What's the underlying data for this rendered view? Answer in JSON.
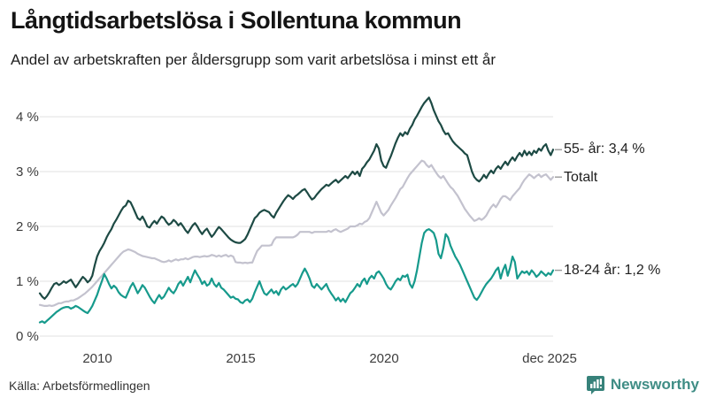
{
  "header": {
    "title": "Långtidsarbetslösa i Sollentuna kommun",
    "subtitle": "Andel av arbetskraften per åldersgrupp som varit arbetslösa i minst ett år"
  },
  "footer": {
    "source": "Källa: Arbetsförmedlingen",
    "brand": "Newsworthy"
  },
  "colors": {
    "series_55": "#1d4a44",
    "series_total": "#c3c2ce",
    "series_youth": "#169a8c",
    "grid": "#e0e0e0",
    "brand_teal": "#3f8d85",
    "connector": "#999999"
  },
  "chart_data": {
    "type": "line",
    "title": "Långtidsarbetslösa i Sollentuna kommun",
    "subtitle": "Andel av arbetskraften per åldersgrupp som varit arbetslösa i minst ett år",
    "unit": "% av arbetskraften",
    "frequency": "monthly",
    "x_start": "2008-01",
    "x_end": "2025-12",
    "ylim": [
      0,
      4.45
    ],
    "grid": true,
    "legend_position": "right of line ends",
    "yticks": [
      "0 %",
      "1 %",
      "2 %",
      "3 %",
      "4 %"
    ],
    "ytick_values": [
      0,
      1,
      2,
      3,
      4
    ],
    "xticks": [
      "2010",
      "2015",
      "2020",
      "dec 2025"
    ],
    "xtick_years": [
      2010,
      2015,
      2020,
      2025.917
    ],
    "series": [
      {
        "name": "55- år",
        "label": "55- år: 3,4 %",
        "end_value": "3,4 %",
        "color": "#1d4a44",
        "values": [
          0.78,
          0.72,
          0.68,
          0.73,
          0.8,
          0.88,
          0.95,
          0.97,
          0.93,
          0.96,
          1.0,
          0.97,
          1.0,
          1.03,
          0.96,
          0.89,
          0.95,
          1.02,
          1.08,
          1.04,
          0.98,
          1.02,
          1.1,
          1.29,
          1.45,
          1.55,
          1.62,
          1.7,
          1.8,
          1.88,
          1.95,
          2.05,
          2.12,
          2.2,
          2.28,
          2.35,
          2.38,
          2.47,
          2.44,
          2.35,
          2.25,
          2.15,
          2.12,
          2.18,
          2.1,
          2.0,
          1.98,
          2.05,
          2.1,
          2.05,
          2.12,
          2.18,
          2.15,
          2.08,
          2.03,
          2.06,
          2.12,
          2.08,
          2.02,
          2.06,
          2.0,
          1.93,
          1.88,
          1.95,
          2.02,
          2.06,
          2.0,
          1.92,
          1.86,
          1.92,
          1.96,
          1.88,
          1.81,
          1.86,
          1.93,
          1.99,
          1.95,
          1.9,
          1.85,
          1.8,
          1.76,
          1.73,
          1.71,
          1.7,
          1.7,
          1.73,
          1.77,
          1.85,
          1.95,
          2.05,
          2.15,
          2.19,
          2.25,
          2.28,
          2.3,
          2.28,
          2.26,
          2.2,
          2.16,
          2.25,
          2.32,
          2.39,
          2.46,
          2.52,
          2.57,
          2.54,
          2.5,
          2.55,
          2.58,
          2.62,
          2.66,
          2.68,
          2.62,
          2.55,
          2.49,
          2.52,
          2.58,
          2.63,
          2.68,
          2.72,
          2.76,
          2.74,
          2.78,
          2.82,
          2.85,
          2.8,
          2.84,
          2.88,
          2.92,
          2.88,
          2.94,
          3.0,
          2.95,
          3.0,
          2.92,
          3.05,
          3.1,
          3.17,
          3.22,
          3.3,
          3.38,
          3.5,
          3.42,
          3.2,
          3.1,
          3.07,
          3.18,
          3.28,
          3.4,
          3.52,
          3.62,
          3.7,
          3.65,
          3.72,
          3.68,
          3.78,
          3.85,
          3.95,
          4.02,
          4.1,
          4.18,
          4.25,
          4.3,
          4.35,
          4.25,
          4.12,
          4.02,
          3.92,
          3.85,
          3.75,
          3.68,
          3.7,
          3.62,
          3.55,
          3.5,
          3.46,
          3.42,
          3.38,
          3.33,
          3.3,
          3.15,
          3.0,
          2.9,
          2.85,
          2.82,
          2.87,
          2.94,
          2.88,
          2.96,
          3.02,
          2.97,
          3.05,
          3.1,
          3.05,
          3.12,
          3.18,
          3.12,
          3.2,
          3.26,
          3.2,
          3.28,
          3.34,
          3.28,
          3.38,
          3.3,
          3.36,
          3.3,
          3.38,
          3.34,
          3.42,
          3.38,
          3.46,
          3.5,
          3.38,
          3.3,
          3.4
        ]
      },
      {
        "name": "Totalt",
        "label": "Totalt",
        "end_value": "2,9 %",
        "color": "#c3c2ce",
        "values": [
          0.57,
          0.56,
          0.55,
          0.55,
          0.56,
          0.55,
          0.56,
          0.58,
          0.6,
          0.6,
          0.62,
          0.63,
          0.63,
          0.65,
          0.65,
          0.67,
          0.69,
          0.72,
          0.75,
          0.78,
          0.82,
          0.86,
          0.9,
          0.95,
          1.0,
          1.05,
          1.1,
          1.15,
          1.2,
          1.25,
          1.3,
          1.35,
          1.4,
          1.45,
          1.5,
          1.54,
          1.56,
          1.58,
          1.57,
          1.55,
          1.53,
          1.5,
          1.48,
          1.46,
          1.45,
          1.44,
          1.43,
          1.42,
          1.42,
          1.4,
          1.38,
          1.36,
          1.35,
          1.36,
          1.38,
          1.36,
          1.38,
          1.4,
          1.38,
          1.4,
          1.4,
          1.42,
          1.4,
          1.42,
          1.44,
          1.45,
          1.45,
          1.44,
          1.45,
          1.46,
          1.45,
          1.46,
          1.48,
          1.47,
          1.45,
          1.47,
          1.45,
          1.47,
          1.48,
          1.45,
          1.47,
          1.45,
          1.35,
          1.34,
          1.34,
          1.33,
          1.34,
          1.33,
          1.34,
          1.34,
          1.45,
          1.55,
          1.6,
          1.65,
          1.65,
          1.65,
          1.65,
          1.66,
          1.75,
          1.8,
          1.8,
          1.8,
          1.8,
          1.8,
          1.8,
          1.8,
          1.8,
          1.82,
          1.85,
          1.9,
          1.9,
          1.9,
          1.9,
          1.9,
          1.88,
          1.9,
          1.9,
          1.9,
          1.9,
          1.9,
          1.9,
          1.92,
          1.9,
          1.93,
          1.95,
          1.92,
          1.9,
          1.92,
          1.94,
          1.96,
          2.0,
          2.0,
          2.0,
          2.02,
          2.05,
          2.04,
          2.08,
          2.1,
          2.15,
          2.25,
          2.35,
          2.45,
          2.35,
          2.25,
          2.2,
          2.25,
          2.3,
          2.38,
          2.45,
          2.52,
          2.6,
          2.68,
          2.72,
          2.8,
          2.88,
          2.95,
          3.0,
          3.05,
          3.1,
          3.15,
          3.2,
          3.18,
          3.12,
          3.08,
          3.12,
          3.05,
          2.98,
          2.92,
          2.88,
          2.92,
          2.85,
          2.78,
          2.72,
          2.68,
          2.62,
          2.56,
          2.48,
          2.4,
          2.32,
          2.26,
          2.2,
          2.15,
          2.1,
          2.12,
          2.15,
          2.12,
          2.15,
          2.2,
          2.28,
          2.35,
          2.4,
          2.35,
          2.42,
          2.5,
          2.55,
          2.55,
          2.52,
          2.48,
          2.55,
          2.6,
          2.65,
          2.7,
          2.78,
          2.85,
          2.9,
          2.95,
          2.92,
          2.88,
          2.92,
          2.95,
          2.9,
          2.93,
          2.95,
          2.9,
          2.85,
          2.9
        ]
      },
      {
        "name": "18-24 år",
        "label": "18-24 år: 1,2 %",
        "end_value": "1,2 %",
        "color": "#169a8c",
        "values": [
          0.25,
          0.27,
          0.24,
          0.28,
          0.32,
          0.36,
          0.4,
          0.44,
          0.47,
          0.5,
          0.52,
          0.53,
          0.53,
          0.5,
          0.52,
          0.55,
          0.53,
          0.5,
          0.47,
          0.44,
          0.42,
          0.48,
          0.55,
          0.65,
          0.75,
          0.88,
          1.0,
          1.13,
          1.05,
          0.95,
          0.87,
          0.92,
          0.88,
          0.8,
          0.75,
          0.72,
          0.7,
          0.8,
          0.9,
          0.97,
          0.88,
          0.78,
          0.85,
          0.93,
          0.88,
          0.8,
          0.72,
          0.65,
          0.6,
          0.68,
          0.75,
          0.68,
          0.72,
          0.8,
          0.88,
          0.82,
          0.78,
          0.85,
          0.95,
          1.0,
          0.92,
          1.0,
          1.08,
          0.98,
          1.1,
          1.2,
          1.12,
          1.05,
          0.95,
          1.0,
          0.92,
          0.95,
          1.05,
          0.95,
          0.9,
          0.97,
          0.88,
          0.85,
          0.8,
          0.75,
          0.7,
          0.72,
          0.68,
          0.67,
          0.62,
          0.6,
          0.65,
          0.67,
          0.62,
          0.68,
          0.8,
          0.9,
          1.0,
          0.88,
          0.78,
          0.75,
          0.8,
          0.85,
          0.78,
          0.82,
          0.75,
          0.85,
          0.9,
          0.85,
          0.88,
          0.92,
          0.95,
          0.9,
          0.95,
          1.05,
          1.15,
          1.23,
          1.15,
          1.05,
          0.92,
          0.88,
          0.95,
          0.9,
          0.85,
          0.9,
          0.95,
          0.85,
          0.78,
          0.72,
          0.65,
          0.7,
          0.63,
          0.68,
          0.62,
          0.7,
          0.78,
          0.82,
          0.88,
          0.95,
          0.9,
          1.0,
          1.05,
          0.95,
          1.05,
          1.1,
          1.05,
          1.15,
          1.18,
          1.12,
          1.05,
          0.95,
          0.88,
          0.85,
          0.92,
          1.0,
          1.05,
          1.02,
          1.1,
          1.08,
          1.12,
          0.95,
          0.88,
          1.0,
          1.2,
          1.45,
          1.7,
          1.88,
          1.93,
          1.95,
          1.92,
          1.88,
          1.75,
          1.5,
          1.42,
          1.6,
          1.86,
          1.8,
          1.65,
          1.55,
          1.45,
          1.38,
          1.3,
          1.2,
          1.1,
          1.0,
          0.9,
          0.8,
          0.7,
          0.66,
          0.72,
          0.8,
          0.88,
          0.95,
          1.0,
          1.05,
          1.12,
          1.2,
          1.25,
          1.05,
          1.2,
          1.3,
          1.1,
          1.25,
          1.45,
          1.35,
          1.05,
          1.12,
          1.18,
          1.15,
          1.18,
          1.12,
          1.2,
          1.15,
          1.08,
          1.12,
          1.18,
          1.14,
          1.1,
          1.15,
          1.12,
          1.2
        ]
      }
    ]
  }
}
